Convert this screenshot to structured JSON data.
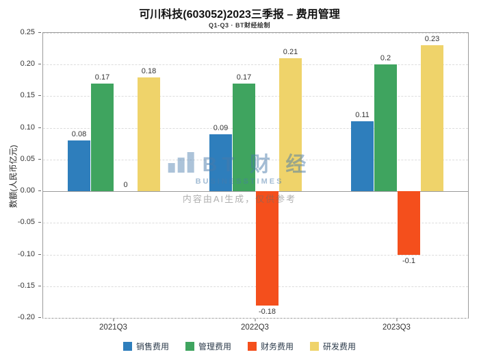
{
  "header": {
    "title": "可川科技(603052)2023三季报 – 费用管理",
    "subtitle": "Q1-Q3 · BT财经绘制"
  },
  "watermark": {
    "logo": "BT 财 经",
    "logo_sub": "BUSINESSTIMES",
    "disclaimer": "内容由AI生成，仅供参考"
  },
  "chart_data": {
    "type": "bar",
    "title": "可川科技(603052)2023三季报 – 费用管理",
    "subtitle": "Q1-Q3 · BT财经绘制",
    "categories": [
      "2021Q3",
      "2022Q3",
      "2023Q3"
    ],
    "series": [
      {
        "name": "销售费用",
        "color": "#2e7ebc",
        "values": [
          0.08,
          0.09,
          0.11
        ]
      },
      {
        "name": "管理费用",
        "color": "#3fa45f",
        "values": [
          0.17,
          0.17,
          0.2
        ]
      },
      {
        "name": "财务费用",
        "color": "#f44f1c",
        "values": [
          0,
          -0.18,
          -0.1
        ]
      },
      {
        "name": "研发费用",
        "color": "#efd36a",
        "values": [
          0.18,
          0.21,
          0.23
        ]
      }
    ],
    "xlabel": "",
    "ylabel": "数额(人民币亿元)",
    "ylim": [
      -0.2,
      0.25
    ],
    "ytick_step": 0.05,
    "grid": true,
    "legend_position": "bottom"
  }
}
